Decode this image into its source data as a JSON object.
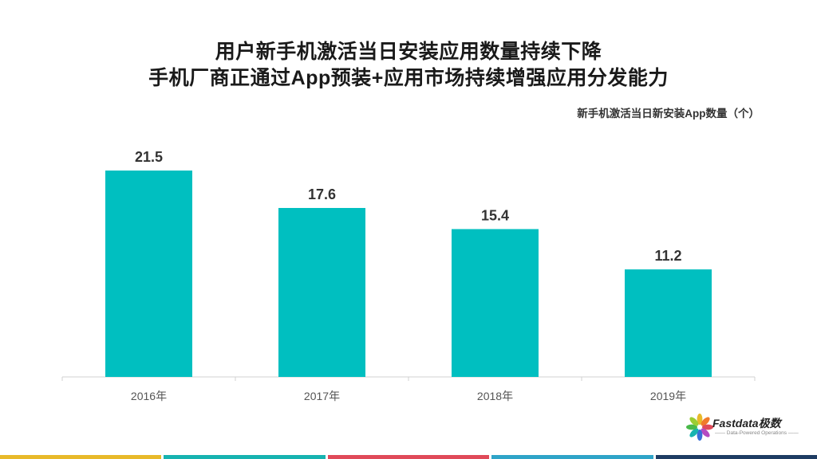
{
  "title_line1": "用户新手机激活当日安装应用数量持续下降",
  "title_line2": "手机厂商正通过App预装+应用市场持续增强应用分发能力",
  "chart_data": {
    "type": "bar",
    "categories": [
      "2016年",
      "2017年",
      "2018年",
      "2019年"
    ],
    "values": [
      21.5,
      17.6,
      15.4,
      11.2
    ],
    "unit_label": "新手机激活当日新安装App数量（个）",
    "ylim": [
      0,
      21.5
    ],
    "grid": false,
    "bar_color": "#00BFC0",
    "axis_color": "#d0d0d0"
  },
  "logo": {
    "name": "Fastdata极数",
    "tagline": "—— Data-Powered Operations ——"
  },
  "bottom_stripe_colors": [
    "#E8B92A",
    "#17B3B0",
    "#E04A59",
    "#2FA4C8",
    "#1E3C63"
  ]
}
